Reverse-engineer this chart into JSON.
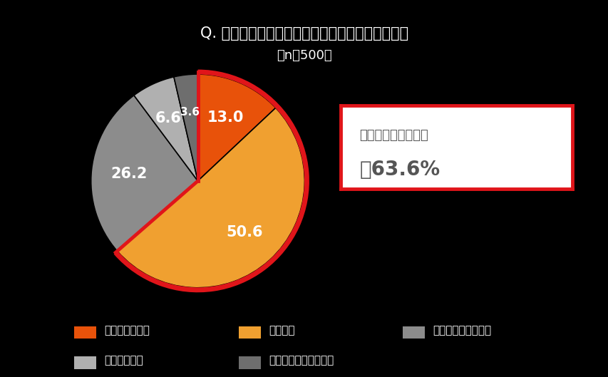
{
  "title": "Q. コロナ祸において健康意識は高まりましたか。",
  "subtitle": "（n＝500）",
  "values": [
    13.0,
    50.6,
    26.2,
    6.6,
    3.6
  ],
  "labels": [
    "とてもそう思う",
    "そう思う",
    "どちらともいえない",
    "そう思わない",
    "まったくそう思わない"
  ],
  "colors": [
    "#e8520a",
    "#f0a030",
    "#8c8c8c",
    "#b0b0b0",
    "#6e6e6e"
  ],
  "highlight_indices": [
    0,
    1
  ],
  "highlight_text_line1": "健康意識は高まった",
  "highlight_text_line2": "＝63.6%",
  "highlight_color": "#e0151a",
  "background_color": "#000000",
  "text_color": "#ffffff",
  "label_fontsize": 15,
  "title_fontsize": 15,
  "subtitle_fontsize": 13,
  "legend_fontsize": 11,
  "start_angle": 90,
  "highlight_sum": 63.6
}
